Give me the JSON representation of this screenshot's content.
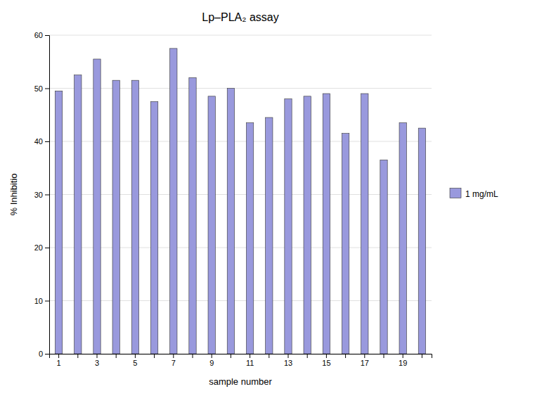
{
  "chart_data": {
    "type": "bar",
    "title": "Lp–PLA₂ assay",
    "xlabel": "sample number",
    "ylabel": "% Inhibitio",
    "categories": [
      "1",
      null,
      "3",
      null,
      "5",
      null,
      "7",
      null,
      "9",
      null,
      "11",
      null,
      "13",
      null,
      "15",
      null,
      "17",
      null,
      "19",
      null
    ],
    "series": [
      {
        "name": "1 mg/mL",
        "color": "#9999dd",
        "values": [
          49.5,
          52.5,
          55.5,
          51.5,
          51.5,
          47.5,
          57.5,
          52.0,
          48.5,
          50.0,
          43.5,
          44.5,
          48.0,
          48.5,
          49.0,
          41.5,
          49.0,
          36.5,
          43.5,
          42.5
        ]
      }
    ],
    "ylim": [
      0,
      60
    ],
    "yticks": [
      0,
      10,
      20,
      30,
      40,
      50,
      60
    ],
    "grid": true,
    "legend": "right"
  }
}
